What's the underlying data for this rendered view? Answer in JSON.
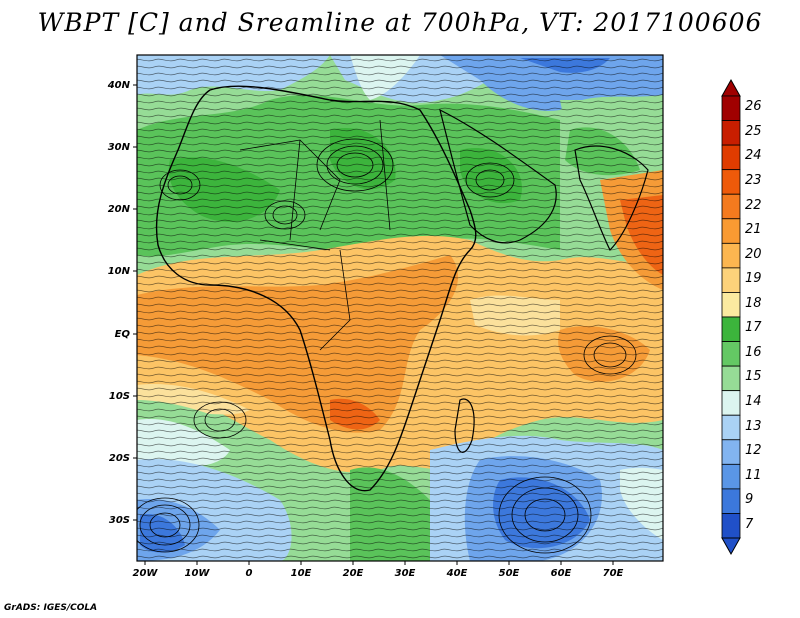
{
  "title": "WBPT [C] and Sreamline at 700hPa, VT: 2017100606",
  "footer": "GrADS: IGES/COLA",
  "lat_labels": [
    "40N",
    "30N",
    "20N",
    "10N",
    "EQ",
    "10S",
    "20S",
    "30S"
  ],
  "lon_labels": [
    "20W",
    "10W",
    "0",
    "10E",
    "20E",
    "30E",
    "40E",
    "50E",
    "60E",
    "70E"
  ],
  "colorbar": {
    "levels": [
      "26",
      "25",
      "24",
      "23",
      "22",
      "21",
      "20",
      "19",
      "18",
      "17",
      "16",
      "15",
      "14",
      "13",
      "12",
      "11",
      "9",
      "7"
    ],
    "colors": [
      "#a00000",
      "#c81e00",
      "#e03c00",
      "#ee5a0a",
      "#f47a1e",
      "#f99a32",
      "#fcb650",
      "#fdd27a",
      "#fbeaa0",
      "#3cb43c",
      "#64c864",
      "#96dc96",
      "#dcf5f0",
      "#aad2f5",
      "#82b4f0",
      "#5a96e6",
      "#3c78dc",
      "#2050c8"
    ]
  },
  "field_colors": {
    "warm_dark": "#ee6414",
    "warm": "#f59b37",
    "warm_light": "#fcc465",
    "sand": "#fbe19c",
    "green_dark": "#3cb43c",
    "green": "#5ac35a",
    "green_light": "#96dc96",
    "pale": "#dcf5f0",
    "blue_light": "#aad2f5",
    "blue": "#6ea5ec",
    "blue_dark": "#3c78dc"
  }
}
